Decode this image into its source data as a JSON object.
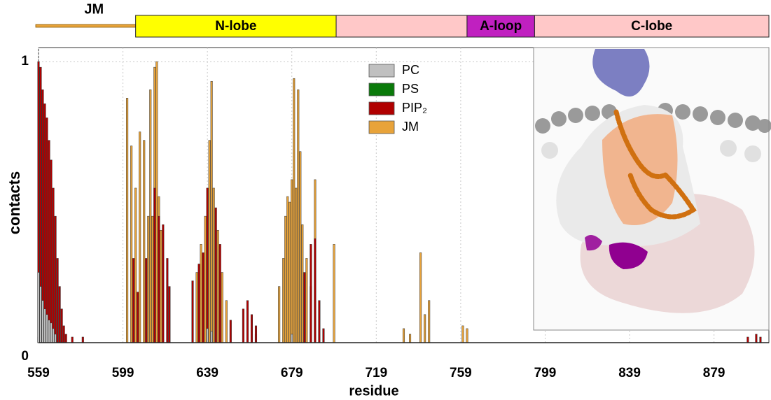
{
  "chart_data": {
    "type": "bar",
    "xlabel": "residue",
    "ylabel": "contacts",
    "xlim": [
      559,
      905
    ],
    "ylim": [
      0,
      1.05
    ],
    "xticks": [
      559,
      599,
      639,
      679,
      719,
      759,
      799,
      839,
      879
    ],
    "yticks": [
      0,
      1
    ],
    "grid": true,
    "legend": "top",
    "domains": [
      {
        "label": "JM",
        "start": 559,
        "end": 605,
        "color": "#e8a33a",
        "kind": "line"
      },
      {
        "label": "N-lobe",
        "start": 605,
        "end": 700,
        "color": "#ffff00",
        "kind": "box"
      },
      {
        "start": 700,
        "end": 762,
        "color": "#ffc8c8",
        "kind": "box"
      },
      {
        "label": "A-loop",
        "start": 762,
        "end": 794,
        "color": "#c020c0",
        "kind": "box"
      },
      {
        "label": "C-lobe",
        "start": 794,
        "end": 905,
        "color": "#ffc8c8",
        "kind": "box"
      }
    ],
    "series": [
      {
        "name": "JM",
        "color": "#e8a33a",
        "x": [
          601,
          603,
          605,
          607,
          609,
          611,
          612,
          613,
          614,
          615,
          616,
          617,
          634,
          636,
          638,
          640,
          641,
          642,
          644,
          646,
          648,
          662,
          673,
          675,
          676,
          677,
          678,
          679,
          680,
          681,
          682,
          683,
          684,
          686,
          688,
          690,
          699,
          732,
          735,
          740,
          742,
          744,
          760,
          762
        ],
        "values": [
          0.87,
          0.7,
          0.55,
          0.75,
          0.72,
          0.45,
          0.9,
          0.45,
          0.98,
          1.0,
          0.52,
          0.4,
          0.25,
          0.35,
          0.45,
          0.72,
          0.93,
          0.55,
          0.4,
          0.25,
          0.15,
          0.03,
          0.2,
          0.3,
          0.45,
          0.52,
          0.5,
          0.58,
          0.94,
          0.55,
          0.9,
          0.68,
          0.42,
          0.3,
          0.2,
          0.58,
          0.35,
          0.05,
          0.03,
          0.32,
          0.1,
          0.15,
          0.06,
          0.05
        ]
      },
      {
        "name": "PIP₂",
        "color": "#b00000",
        "x": [
          559,
          560,
          561,
          562,
          563,
          564,
          565,
          566,
          567,
          568,
          569,
          570,
          571,
          572,
          575,
          580,
          604,
          606,
          610,
          614,
          616,
          618,
          620,
          621,
          632,
          635,
          637,
          639,
          643,
          645,
          650,
          656,
          658,
          660,
          662,
          685,
          688,
          690,
          692,
          694,
          895,
          899,
          901
        ],
        "values": [
          1.0,
          0.98,
          0.9,
          0.85,
          0.8,
          0.72,
          0.65,
          0.55,
          0.45,
          0.3,
          0.2,
          0.12,
          0.06,
          0.03,
          0.02,
          0.02,
          0.3,
          0.18,
          0.3,
          0.55,
          0.45,
          0.42,
          0.3,
          0.2,
          0.22,
          0.28,
          0.32,
          0.55,
          0.48,
          0.35,
          0.08,
          0.12,
          0.15,
          0.1,
          0.06,
          0.25,
          0.35,
          0.37,
          0.15,
          0.05,
          0.02,
          0.03,
          0.02
        ]
      },
      {
        "name": "PS",
        "color": "#0a7a0a",
        "x": [
          559,
          560,
          561,
          562
        ],
        "values": [
          0.02,
          0.03,
          0.02,
          0.01
        ]
      },
      {
        "name": "PC",
        "color": "#c0c0c0",
        "x": [
          559,
          560,
          561,
          562,
          563,
          564,
          565,
          566,
          567,
          639,
          641,
          679
        ],
        "values": [
          0.25,
          0.2,
          0.15,
          0.12,
          0.1,
          0.08,
          0.07,
          0.05,
          0.03,
          0.05,
          0.04,
          0.03
        ]
      }
    ]
  }
}
